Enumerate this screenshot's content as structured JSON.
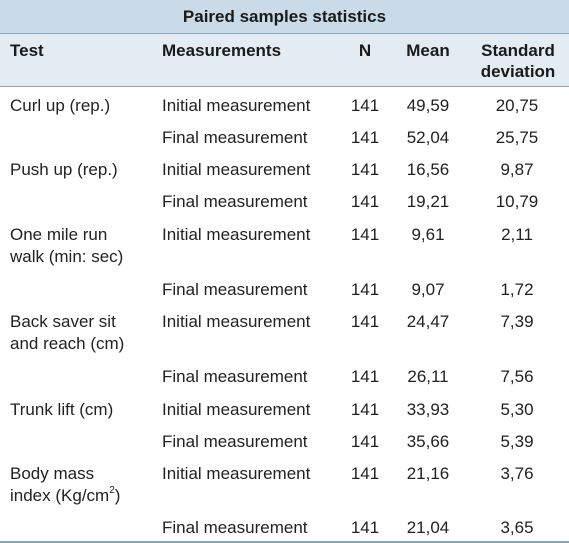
{
  "table": {
    "title": "Paired samples statistics",
    "headers": {
      "test": "Test",
      "measurements": "Measurements",
      "n": "N",
      "mean": "Mean",
      "sd_line1": "Standard",
      "sd_line2": "deviation"
    },
    "rows": [
      {
        "test_line1": "Curl up (rep.)",
        "test_line2": "",
        "measurement": "Initial measurement",
        "n": "141",
        "mean": "49,59",
        "sd": "20,75"
      },
      {
        "test_line1": "",
        "test_line2": "",
        "measurement": "Final measurement",
        "n": "141",
        "mean": "52,04",
        "sd": "25,75"
      },
      {
        "test_line1": "Push up (rep.)",
        "test_line2": "",
        "measurement": "Initial measurement",
        "n": "141",
        "mean": "16,56",
        "sd": "9,87"
      },
      {
        "test_line1": "",
        "test_line2": "",
        "measurement": "Final measurement",
        "n": "141",
        "mean": "19,21",
        "sd": "10,79"
      },
      {
        "test_line1": "One mile run",
        "test_line2": "walk (min: sec)",
        "measurement": "Initial measurement",
        "n": "141",
        "mean": "9,61",
        "sd": "2,11"
      },
      {
        "test_line1": "",
        "test_line2": "",
        "measurement": "Final measurement",
        "n": "141",
        "mean": "9,07",
        "sd": "1,72"
      },
      {
        "test_line1": "Back saver sit",
        "test_line2": "and reach (cm)",
        "measurement": "Initial measurement",
        "n": "141",
        "mean": "24,47",
        "sd": "7,39"
      },
      {
        "test_line1": "",
        "test_line2": "",
        "measurement": "Final measurement",
        "n": "141",
        "mean": "26,11",
        "sd": "7,56"
      },
      {
        "test_line1": "Trunk lift (cm)",
        "test_line2": "",
        "measurement": "Initial measurement",
        "n": "141",
        "mean": "33,93",
        "sd": "5,30"
      },
      {
        "test_line1": "",
        "test_line2": "",
        "measurement": "Final measurement",
        "n": "141",
        "mean": "35,66",
        "sd": "5,39"
      },
      {
        "test_line1": "Body mass",
        "test_line2": "index (Kg/cm",
        "test_line2_sup": "2",
        "test_line2_end": ")",
        "measurement": "Initial measurement",
        "n": "141",
        "mean": "21,16",
        "sd": "3,76"
      },
      {
        "test_line1": "",
        "test_line2": "",
        "measurement": "Final measurement",
        "n": "141",
        "mean": "21,04",
        "sd": "3,65"
      }
    ]
  }
}
